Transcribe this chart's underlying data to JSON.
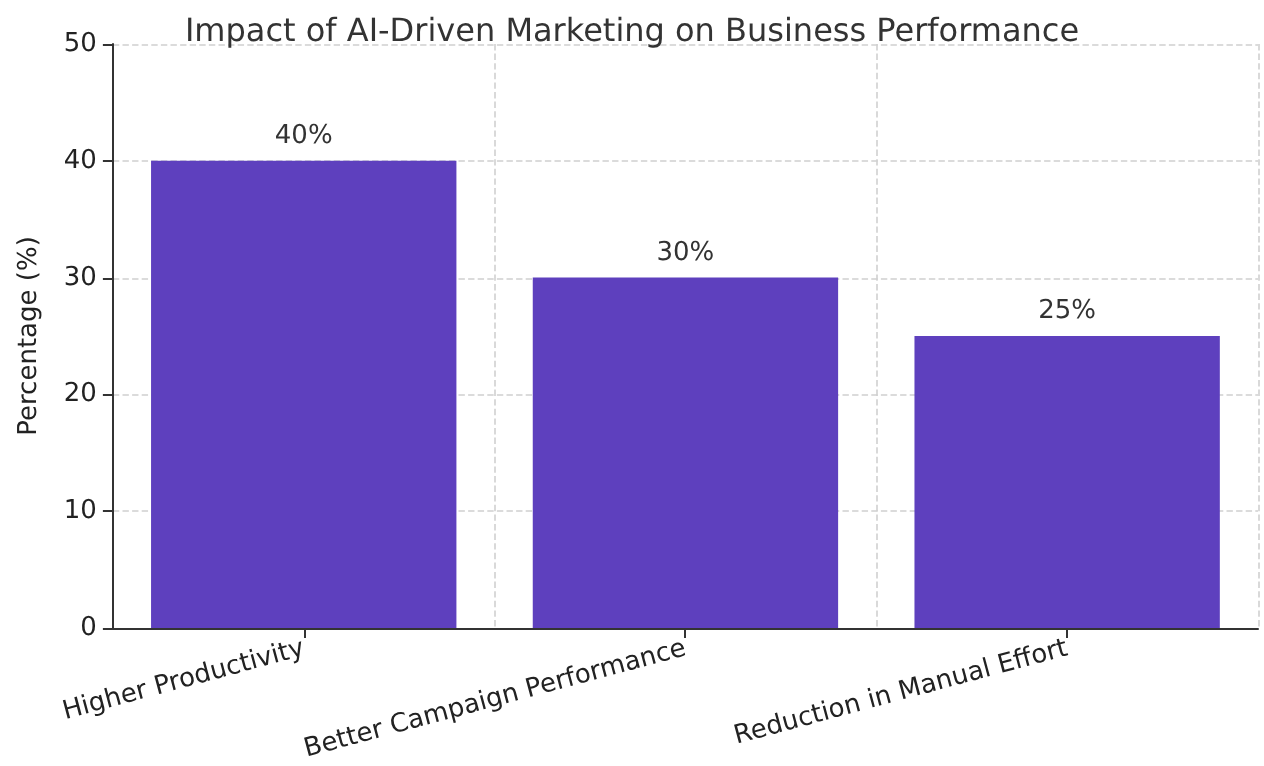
{
  "chart_data": {
    "type": "bar",
    "title": "Impact of AI-Driven Marketing on Business Performance",
    "ylabel": "Percentage (%)",
    "categories": [
      "Higher Productivity",
      "Better Campaign Performance",
      "Reduction in Manual Effort"
    ],
    "values": [
      40,
      30,
      25
    ],
    "color": "#5e40be",
    "value_labels": [
      "40%",
      "30%",
      "25%"
    ],
    "ylim": [
      0,
      50
    ],
    "yticks": [
      0,
      10,
      20,
      30,
      40,
      50
    ],
    "grid": true
  }
}
